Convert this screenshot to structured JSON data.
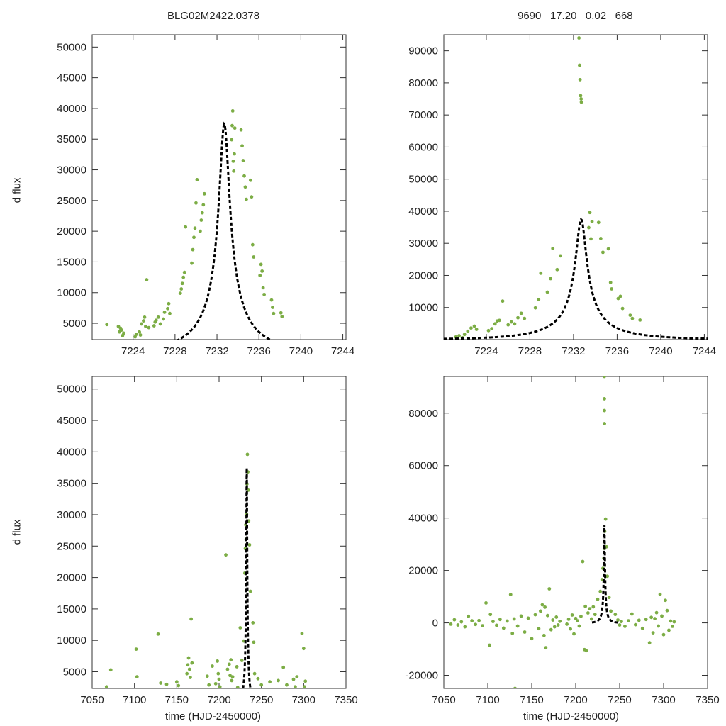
{
  "figure": {
    "title_left": "BLG02M2422.0378",
    "title_right": "9690   17.20   0.02   668",
    "ylabel": "d flux",
    "xlabel": "time (HJD-2450000)"
  },
  "colors": {
    "data": "#7cad45",
    "model": "#000000",
    "axes": "#333333"
  },
  "chart_data": [
    {
      "id": "zoom-left",
      "type": "scatter",
      "title": "BLG02M2422.0378",
      "xlabel": "",
      "ylabel": "d flux",
      "xlim": [
        7220.1,
        7244.3
      ],
      "ylim": [
        2350,
        52000
      ],
      "xticks": [
        7224,
        7228,
        7232,
        7236,
        7240,
        7244
      ],
      "yticks": [
        5000,
        10000,
        15000,
        20000,
        25000,
        30000,
        35000,
        40000,
        45000,
        50000
      ],
      "model": {
        "type": "paczynski",
        "t0": 7232.7,
        "tE": 7.15,
        "u0": 0.0685,
        "baseline": 0,
        "fs": 2750,
        "xrange": [
          7220.1,
          7244.3
        ]
      },
      "series": [
        {
          "name": "data",
          "x": [
            7221.5,
            7222.6,
            7222.7,
            7222.8,
            7222.9,
            7223.0,
            7223.1,
            7224.2,
            7224.3,
            7224.6,
            7224.7,
            7224.8,
            7225.0,
            7225.1,
            7225.2,
            7225.3,
            7225.5,
            7226.0,
            7226.1,
            7226.2,
            7226.4,
            7226.6,
            7226.9,
            7227.0,
            7227.3,
            7227.4,
            7227.5,
            7228.5,
            7228.6,
            7228.7,
            7228.8,
            7228.9,
            7229.0,
            7229.6,
            7229.7,
            7229.8,
            7229.9,
            7230.0,
            7230.1,
            7230.4,
            7230.5,
            7230.6,
            7230.7,
            7230.8,
            7233.4,
            7233.45,
            7233.5,
            7233.55,
            7233.6,
            7233.65,
            7233.7,
            7234.3,
            7234.4,
            7234.5,
            7234.6,
            7234.7,
            7234.8,
            7235.2,
            7235.3,
            7235.4,
            7235.5,
            7236.1,
            7236.2,
            7236.3,
            7236.4,
            7236.5,
            7237.2,
            7237.3,
            7237.4,
            7238.1,
            7238.2
          ],
          "values": [
            4800,
            4500,
            3600,
            4200,
            3900,
            3000,
            3400,
            2800,
            3200,
            3600,
            3100,
            4900,
            5400,
            6000,
            4500,
            12100,
            4300,
            4600,
            5200,
            5500,
            6000,
            4900,
            5700,
            6800,
            7400,
            8200,
            6600,
            9900,
            10600,
            11500,
            12500,
            13300,
            20700,
            14800,
            17000,
            19000,
            20500,
            24600,
            28400,
            20000,
            21800,
            23000,
            24300,
            26100,
            34900,
            37200,
            39600,
            31400,
            29800,
            32600,
            36800,
            36500,
            33900,
            31500,
            29000,
            27200,
            25200,
            28300,
            25600,
            17800,
            15800,
            12800,
            14600,
            13500,
            10800,
            9700,
            8800,
            7600,
            6600,
            6700,
            6100
          ]
        }
      ]
    },
    {
      "id": "zoom-right",
      "type": "scatter",
      "title": "9690   17.20   0.02   668",
      "xlabel": "",
      "ylabel": "",
      "xlim": [
        7220.1,
        7244.3
      ],
      "ylim": [
        0,
        95000
      ],
      "xticks": [
        7224,
        7228,
        7232,
        7236,
        7240,
        7244
      ],
      "yticks": [
        10000,
        20000,
        30000,
        40000,
        50000,
        60000,
        70000,
        80000,
        90000
      ],
      "model": {
        "type": "paczynski",
        "t0": 7232.7,
        "tE": 7.15,
        "u0": 0.0685,
        "baseline": 0,
        "fs": 2750,
        "xrange": [
          7220.1,
          7244.3
        ]
      },
      "series": [
        {
          "name": "data",
          "x": [
            7221.2,
            7221.5,
            7221.8,
            7222.0,
            7222.3,
            7222.6,
            7222.9,
            7223.1,
            7224.2,
            7224.5,
            7224.8,
            7225.0,
            7225.2,
            7225.5,
            7226.0,
            7226.3,
            7226.6,
            7226.9,
            7227.2,
            7227.5,
            7228.5,
            7228.8,
            7229.0,
            7229.6,
            7229.9,
            7230.1,
            7230.5,
            7230.8,
            7232.5,
            7232.55,
            7232.6,
            7232.65,
            7232.7,
            7232.72,
            7233.4,
            7233.5,
            7233.6,
            7233.7,
            7234.3,
            7234.5,
            7234.7,
            7235.2,
            7235.4,
            7235.5,
            7236.1,
            7236.3,
            7236.5,
            7237.2,
            7237.4,
            7238.1
          ],
          "values": [
            800,
            1200,
            600,
            1600,
            2600,
            3600,
            4200,
            3200,
            2800,
            3400,
            4900,
            5800,
            6000,
            12000,
            4600,
            5500,
            4900,
            6800,
            8200,
            6600,
            9900,
            12500,
            20700,
            14800,
            19000,
            28400,
            21800,
            26100,
            94000,
            85500,
            81000,
            76000,
            75000,
            74000,
            34900,
            39600,
            31400,
            36800,
            36500,
            31500,
            27200,
            28300,
            17800,
            15800,
            12800,
            13500,
            9700,
            7600,
            6600,
            6100
          ]
        }
      ]
    },
    {
      "id": "full-left",
      "type": "scatter",
      "title": "",
      "xlabel": "time (HJD-2450000)",
      "ylabel": "d flux",
      "xlim": [
        7050,
        7350
      ],
      "ylim": [
        2350,
        52000
      ],
      "xticks": [
        7050,
        7100,
        7150,
        7200,
        7250,
        7300,
        7350
      ],
      "yticks": [
        5000,
        10000,
        15000,
        20000,
        25000,
        30000,
        35000,
        40000,
        45000,
        50000
      ],
      "model": {
        "type": "paczynski",
        "t0": 7232.7,
        "tE": 7.15,
        "u0": 0.0685,
        "baseline": 0,
        "fs": 2750,
        "xrange": [
          7218.5,
          7249
        ]
      },
      "series": [
        {
          "name": "data",
          "x": [
            7067,
            7072,
            7102,
            7103,
            7128,
            7131,
            7138,
            7150,
            7152,
            7162,
            7163,
            7164,
            7165,
            7166,
            7167,
            7168,
            7186,
            7188,
            7192,
            7196,
            7198,
            7199,
            7200,
            7201,
            7208,
            7210,
            7212,
            7213,
            7214,
            7215,
            7216,
            7221,
            7222,
            7225,
            7227,
            7229,
            7230.5,
            7231,
            7231.5,
            7232,
            7232.5,
            7233,
            7233.5,
            7234,
            7234.5,
            7235,
            7236,
            7237,
            7240,
            7241,
            7242,
            7246,
            7250,
            7260,
            7270,
            7276,
            7280,
            7288,
            7290,
            7292,
            7298,
            7300,
            7301,
            7302
          ],
          "values": [
            2600,
            5300,
            8600,
            4200,
            11000,
            3200,
            3000,
            3400,
            2800,
            4700,
            6100,
            7200,
            5400,
            4100,
            13400,
            6400,
            4300,
            2900,
            5900,
            3100,
            6700,
            4700,
            3800,
            2600,
            23600,
            5400,
            6200,
            4400,
            6900,
            3600,
            4200,
            5800,
            2500,
            12000,
            6800,
            9900,
            20700,
            24600,
            28400,
            26100,
            30100,
            34900,
            39600,
            36800,
            33900,
            29000,
            25200,
            17800,
            12800,
            9700,
            4700,
            3900,
            2900,
            3400,
            3600,
            5700,
            2900,
            3800,
            2600,
            4200,
            11100,
            8700,
            2600,
            3500
          ]
        }
      ]
    },
    {
      "id": "full-right",
      "type": "scatter",
      "title": "",
      "xlabel": "time (HJD-2450000)",
      "ylabel": "",
      "xlim": [
        7050,
        7350
      ],
      "ylim": [
        -25000,
        94000
      ],
      "xticks": [
        7050,
        7100,
        7150,
        7200,
        7250,
        7300,
        7350
      ],
      "yticks": [
        -20000,
        0,
        20000,
        40000,
        60000,
        80000
      ],
      "model": {
        "type": "paczynski",
        "t0": 7232.7,
        "tE": 7.15,
        "u0": 0.0685,
        "baseline": 0,
        "fs": 2750,
        "xrange": [
          7218.5,
          7249
        ]
      },
      "series": [
        {
          "name": "data",
          "x": [
            7058,
            7062,
            7066,
            7070,
            7074,
            7078,
            7082,
            7086,
            7090,
            7094,
            7098,
            7102,
            7103,
            7106,
            7110,
            7114,
            7118,
            7122,
            7126,
            7128,
            7130,
            7131,
            7134,
            7138,
            7142,
            7146,
            7150,
            7154,
            7158,
            7160,
            7162,
            7164,
            7165,
            7166,
            7168,
            7170,
            7172,
            7174,
            7176,
            7178,
            7180,
            7182,
            7190,
            7192,
            7194,
            7196,
            7198,
            7200,
            7202,
            7204,
            7206,
            7208,
            7210,
            7211,
            7212,
            7214,
            7216,
            7218,
            7220,
            7222,
            7225,
            7228,
            7230,
            7231,
            7232,
            7232.5,
            7232.6,
            7232.65,
            7232.7,
            7232.75,
            7233,
            7234,
            7235,
            7236,
            7238,
            7240,
            7245,
            7248,
            7250,
            7252,
            7256,
            7260,
            7264,
            7268,
            7272,
            7276,
            7280,
            7284,
            7286,
            7288,
            7290,
            7292,
            7294,
            7296,
            7298,
            7300,
            7302,
            7304,
            7306,
            7308,
            7310,
            7312
          ],
          "values": [
            -500,
            1200,
            -800,
            400,
            -1500,
            2500,
            800,
            -600,
            900,
            -1100,
            7600,
            -8500,
            3200,
            500,
            -900,
            1300,
            -2000,
            700,
            10800,
            -4000,
            1500,
            -25000,
            -1200,
            2600,
            -3500,
            1800,
            -6000,
            3100,
            -2200,
            4500,
            6900,
            -4800,
            6000,
            -9500,
            2800,
            13000,
            -2600,
            1100,
            -1500,
            2200,
            -800,
            600,
            -500,
            1400,
            -2300,
            3000,
            -4200,
            1700,
            800,
            -1200,
            2500,
            23400,
            -10200,
            6300,
            -10600,
            3800,
            5400,
            1500,
            6100,
            3200,
            9000,
            12000,
            16500,
            20800,
            24600,
            28400,
            94000,
            85500,
            81000,
            76000,
            34900,
            39600,
            29000,
            17800,
            9700,
            4500,
            3200,
            1100,
            -800,
            500,
            -1300,
            800,
            3400,
            -700,
            1000,
            -2100,
            1300,
            -7600,
            2100,
            -3800,
            1600,
            3900,
            -1200,
            10900,
            2600,
            -4500,
            8600,
            4700,
            -2800,
            700,
            -1300,
            400
          ]
        }
      ]
    }
  ]
}
